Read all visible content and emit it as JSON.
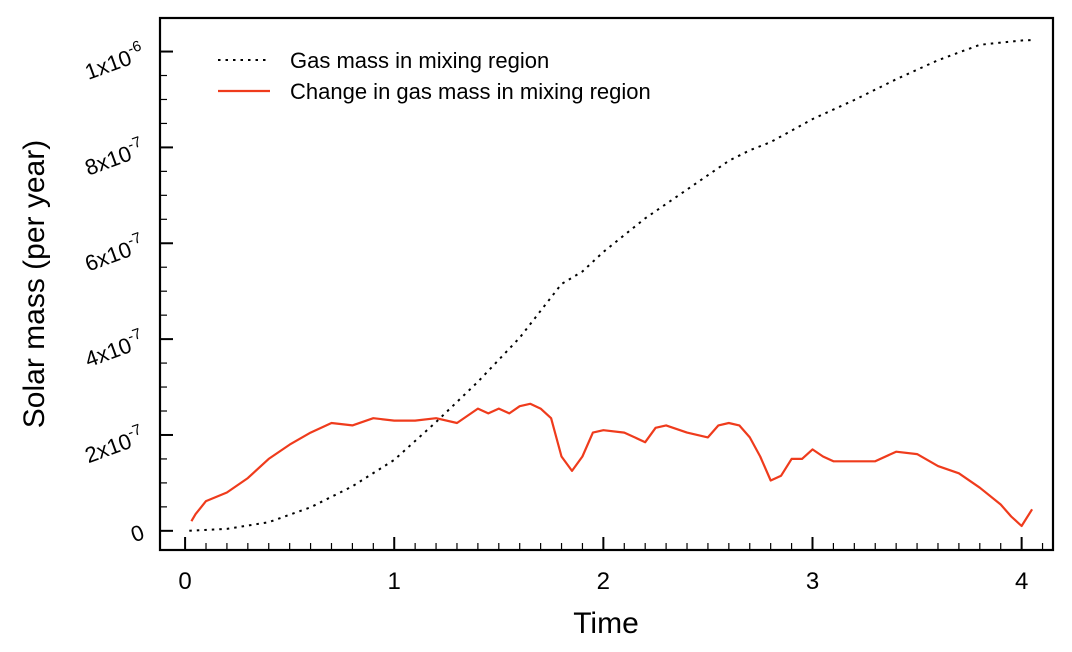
{
  "chart_data": {
    "type": "line",
    "title": "",
    "xlabel": "Time",
    "ylabel": "Solar mass (per year)",
    "xlim": [
      -0.12,
      4.15
    ],
    "ylim": [
      -4e-08,
      1.07e-06
    ],
    "x_ticks": [
      {
        "value": 0,
        "label": "0"
      },
      {
        "value": 1,
        "label": "1"
      },
      {
        "value": 2,
        "label": "2"
      },
      {
        "value": 3,
        "label": "3"
      },
      {
        "value": 4,
        "label": "4"
      }
    ],
    "y_ticks": [
      {
        "value": 0,
        "mantissa": "0",
        "exponent": ""
      },
      {
        "value": 2e-07,
        "mantissa": "2x10",
        "exponent": "-7"
      },
      {
        "value": 4e-07,
        "mantissa": "4x10",
        "exponent": "-7"
      },
      {
        "value": 6e-07,
        "mantissa": "6x10",
        "exponent": "-7"
      },
      {
        "value": 8e-07,
        "mantissa": "8x10",
        "exponent": "-7"
      },
      {
        "value": 1e-06,
        "mantissa": "1x10",
        "exponent": "-6"
      }
    ],
    "legend_position": "top-left",
    "series": [
      {
        "name": "Gas mass in mixing region",
        "style": "dotted",
        "color": "#000000",
        "x": [
          0.02,
          0.2,
          0.4,
          0.6,
          0.8,
          1.0,
          1.2,
          1.4,
          1.6,
          1.8,
          1.9,
          2.0,
          2.2,
          2.4,
          2.6,
          2.7,
          2.8,
          3.0,
          3.2,
          3.4,
          3.6,
          3.8,
          4.0,
          4.05
        ],
        "y": [
          0.0,
          4e-09,
          1.8e-08,
          4.9e-08,
          9.3e-08,
          1.48e-07,
          2.27e-07,
          3.11e-07,
          4.03e-07,
          5.15e-07,
          5.41e-07,
          5.82e-07,
          6.52e-07,
          7.12e-07,
          7.72e-07,
          7.94e-07,
          8.11e-07,
          8.59e-07,
          8.99e-07,
          9.42e-07,
          9.82e-07,
          1.014e-06,
          1.023e-06,
          1.024e-06
        ]
      },
      {
        "name": "Change in gas mass in mixing region",
        "style": "solid",
        "color": "#ef3b1c",
        "x": [
          0.03,
          0.05,
          0.1,
          0.2,
          0.3,
          0.4,
          0.5,
          0.6,
          0.7,
          0.8,
          0.9,
          1.0,
          1.1,
          1.2,
          1.3,
          1.4,
          1.45,
          1.5,
          1.55,
          1.6,
          1.65,
          1.7,
          1.75,
          1.8,
          1.85,
          1.9,
          1.95,
          2.0,
          2.1,
          2.2,
          2.25,
          2.3,
          2.4,
          2.5,
          2.55,
          2.6,
          2.65,
          2.7,
          2.75,
          2.8,
          2.85,
          2.9,
          2.95,
          3.0,
          3.05,
          3.1,
          3.2,
          3.3,
          3.4,
          3.5,
          3.6,
          3.7,
          3.8,
          3.9,
          3.95,
          4.0,
          4.05
        ],
        "y": [
          2e-08,
          3.5e-08,
          6.2e-08,
          8e-08,
          1.1e-07,
          1.5e-07,
          1.8e-07,
          2.05e-07,
          2.25e-07,
          2.2e-07,
          2.35e-07,
          2.3e-07,
          2.3e-07,
          2.35e-07,
          2.25e-07,
          2.55e-07,
          2.45e-07,
          2.55e-07,
          2.45e-07,
          2.6e-07,
          2.65e-07,
          2.55e-07,
          2.35e-07,
          1.55e-07,
          1.25e-07,
          1.55e-07,
          2.05e-07,
          2.1e-07,
          2.05e-07,
          1.85e-07,
          2.15e-07,
          2.2e-07,
          2.05e-07,
          1.95e-07,
          2.2e-07,
          2.25e-07,
          2.2e-07,
          1.95e-07,
          1.55e-07,
          1.05e-07,
          1.15e-07,
          1.5e-07,
          1.5e-07,
          1.7e-07,
          1.55e-07,
          1.45e-07,
          1.45e-07,
          1.45e-07,
          1.65e-07,
          1.6e-07,
          1.35e-07,
          1.2e-07,
          9e-08,
          5.5e-08,
          3e-08,
          1e-08,
          4.5e-08
        ]
      }
    ]
  }
}
